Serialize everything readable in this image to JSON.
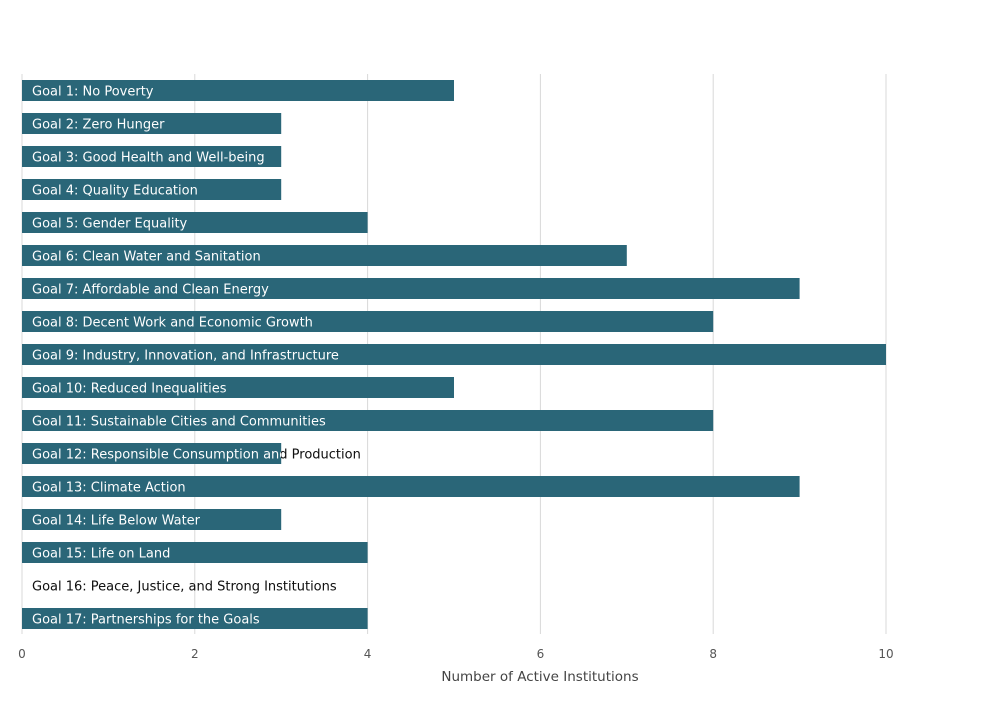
{
  "chart_data": {
    "type": "bar",
    "orientation": "horizontal",
    "title": "",
    "xlabel": "Number of Active Institutions",
    "ylabel": "",
    "xlim": [
      0,
      10
    ],
    "xticks": [
      0,
      2,
      4,
      6,
      8,
      10
    ],
    "grid": true,
    "bar_color": "#2a6678",
    "categories": [
      "Goal 1: No Poverty",
      "Goal 2: Zero Hunger",
      "Goal 3: Good Health and Well-being",
      "Goal 4: Quality Education",
      "Goal 5: Gender Equality",
      "Goal 6: Clean Water and Sanitation",
      "Goal 7: Affordable and Clean Energy",
      "Goal 8: Decent Work and Economic Growth",
      "Goal 9: Industry, Innovation, and Infrastructure",
      "Goal 10: Reduced Inequalities",
      "Goal 11: Sustainable Cities and Communities",
      "Goal 12: Responsible Consumption and Production",
      "Goal 13: Climate Action",
      "Goal 14: Life Below Water",
      "Goal 15: Life on Land",
      "Goal 16: Peace, Justice, and Strong Institutions",
      "Goal 17: Partnerships for the Goals"
    ],
    "values": [
      5,
      3,
      3,
      3,
      4,
      7,
      9,
      8,
      10,
      5,
      8,
      3,
      9,
      3,
      4,
      0,
      4
    ]
  }
}
